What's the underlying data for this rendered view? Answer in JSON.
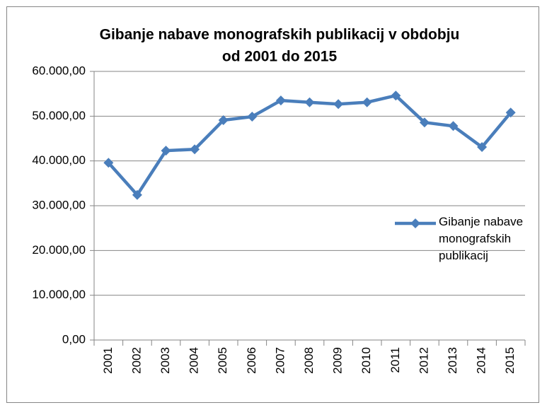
{
  "chart_data": {
    "type": "line",
    "title": [
      "Gibanje nabave monografskih publikacij v obdobju",
      "od 2001 do 2015"
    ],
    "categories": [
      "2001",
      "2002",
      "2003",
      "2004",
      "2005",
      "2006",
      "2007",
      "2008",
      "2009",
      "2010",
      "2011",
      "2012",
      "2013",
      "2014",
      "2015"
    ],
    "series": [
      {
        "name": "Gibanje nabave monografskih publikacij",
        "color": "#4a7ebb",
        "values": [
          39600,
          32400,
          42300,
          42600,
          49100,
          49900,
          53500,
          53100,
          52700,
          53100,
          54600,
          48600,
          47800,
          43100,
          50800
        ]
      }
    ],
    "ylim": [
      0,
      60000
    ],
    "yticks": [
      {
        "value": 0,
        "label": "0,00"
      },
      {
        "value": 10000,
        "label": "10.000,00"
      },
      {
        "value": 20000,
        "label": "20.000,00"
      },
      {
        "value": 30000,
        "label": "30.000,00"
      },
      {
        "value": 40000,
        "label": "40.000,00"
      },
      {
        "value": 50000,
        "label": "50.000,00"
      },
      {
        "value": 60000,
        "label": "60.000,00"
      }
    ],
    "grid": true,
    "legend": "right"
  }
}
